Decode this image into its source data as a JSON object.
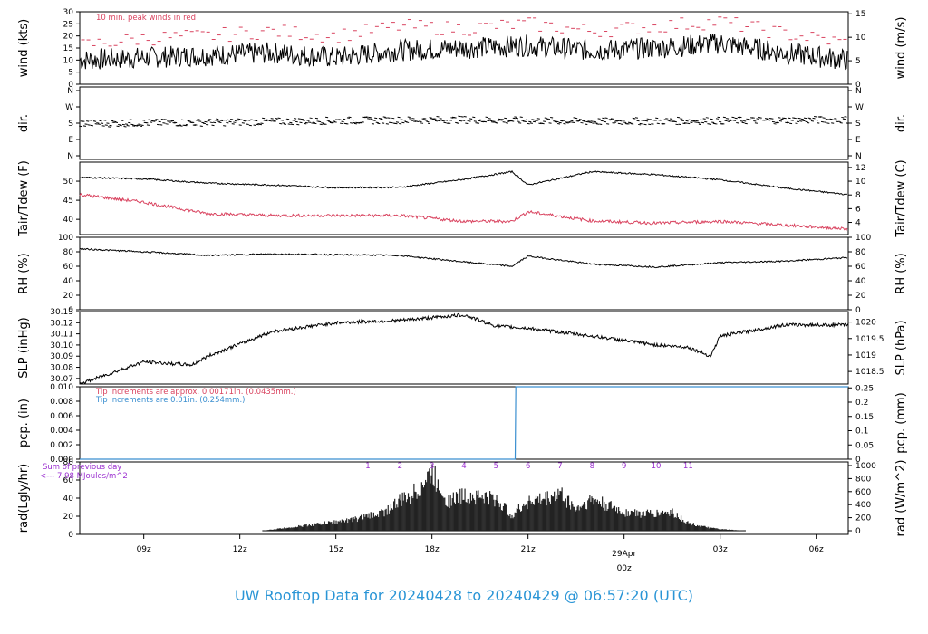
{
  "footer_title": "UW Rooftop Data for 20240428  to  20240429 @ 06:57:20  (UTC)",
  "colors": {
    "peak": "#d9435f",
    "tdew": "#d9435f",
    "pcp_tip2": "#3b8fd0",
    "note_purple": "#9b30d0",
    "date": "#d9435f",
    "footer": "#2a95d6"
  },
  "chart_data": [
    {
      "type": "line",
      "panel": "wind",
      "ylabel_left": "wind (kts)",
      "ylabel_right": "wind (m/s)",
      "ylim_left": [
        0,
        30
      ],
      "ticks_left": [
        0,
        5,
        10,
        15,
        20,
        25,
        30
      ],
      "ticks_right": [
        0,
        5,
        10,
        15
      ],
      "annotation": "10 min. peak winds in red",
      "x_hours": [
        0,
        2,
        4,
        6,
        8,
        10,
        12,
        14,
        16,
        18,
        20,
        22,
        24
      ],
      "series": [
        {
          "values": [
            10,
            11,
            12,
            13,
            11,
            14,
            15,
            16,
            14,
            15,
            17,
            13,
            10
          ]
        },
        {
          "values": [
            16,
            19,
            20,
            22,
            20,
            24,
            23,
            25,
            22,
            24,
            26,
            21,
            17
          ],
          "style": "peak-dashes"
        }
      ]
    },
    {
      "type": "scatter",
      "panel": "dir",
      "ylabel_left": "dir.",
      "ylabel_right": "dir.",
      "ticks": [
        "N",
        "W",
        "S",
        "E",
        "N"
      ],
      "x_hours": [
        0,
        4,
        8,
        12,
        16,
        20,
        24
      ],
      "values_deg": [
        180,
        185,
        195,
        200,
        190,
        195,
        200
      ]
    },
    {
      "type": "line",
      "panel": "temp",
      "ylabel_left": "Tair/Tdew (F)",
      "ylabel_right": "Tair/Tdew (C)",
      "ylim_left": [
        36,
        55
      ],
      "ticks_left": [
        40,
        45,
        50
      ],
      "ticks_right": [
        4,
        6,
        8,
        10,
        12
      ],
      "x_hours": [
        0,
        2,
        4,
        6,
        8,
        10,
        12,
        13.5,
        14,
        16,
        18,
        20,
        22,
        24
      ],
      "series": [
        {
          "name": "Tair",
          "values": [
            51,
            50.6,
            49.5,
            49,
            48.3,
            48.4,
            50.5,
            52.5,
            49,
            52.5,
            51.7,
            50.4,
            48.2,
            46.5
          ]
        },
        {
          "name": "Tdew",
          "values": [
            46.5,
            44.5,
            41.5,
            41,
            41,
            41,
            39.5,
            39.5,
            42,
            39.6,
            39,
            39.5,
            38.5,
            37.5
          ]
        }
      ]
    },
    {
      "type": "line",
      "panel": "rh",
      "ylabel_left": "RH (%)",
      "ylabel_right": "RH (%)",
      "ylim": [
        0,
        100
      ],
      "ticks": [
        0,
        20,
        40,
        60,
        80,
        100
      ],
      "x_hours": [
        0,
        2,
        4,
        6,
        8,
        10,
        12,
        13.5,
        14,
        16,
        18,
        20,
        22,
        24
      ],
      "values": [
        84,
        80,
        75,
        77,
        76,
        75,
        66,
        60,
        74,
        63,
        59,
        65,
        67,
        72
      ]
    },
    {
      "type": "line",
      "panel": "slp",
      "ylabel_left": "SLP (inHg)",
      "ylabel_right": "SLP (hPa)",
      "ylim_left": [
        30.065,
        30.13
      ],
      "ticks_left": [
        30.07,
        30.08,
        30.09,
        30.1,
        30.11,
        30.12,
        30.13
      ],
      "ticks_right": [
        1018.5,
        1019,
        1019.5,
        1020
      ],
      "x_hours": [
        0,
        2,
        3.5,
        4,
        6,
        8,
        10,
        12,
        13,
        14,
        16,
        18,
        19,
        19.7,
        20,
        22,
        24
      ],
      "values": [
        30.065,
        30.085,
        30.082,
        30.09,
        30.112,
        30.12,
        30.122,
        30.127,
        30.117,
        30.115,
        30.108,
        30.1,
        30.098,
        30.09,
        30.108,
        30.118,
        30.118
      ]
    },
    {
      "type": "line",
      "panel": "pcp",
      "ylabel_left": "pcp. (in)",
      "ylabel_right": "pcp. (mm)",
      "ylim_left": [
        0,
        0.01
      ],
      "ticks_left": [
        0.0,
        0.002,
        0.004,
        0.006,
        0.008,
        0.01
      ],
      "ticks_right": [
        0,
        0.05,
        0.1,
        0.15,
        0.2,
        0.25
      ],
      "annotations": [
        "Tip increments are approx. 0.00171in. (0.0435mm.)",
        "Tip increments are 0.01in. (0.254mm.)"
      ],
      "x_hours": [
        0,
        13.6,
        13.62,
        24
      ],
      "values": [
        0,
        0,
        0.01,
        0.01
      ]
    },
    {
      "type": "area",
      "panel": "rad",
      "ylabel_left": "rad(Lgly/hr)",
      "ylabel_right": "rad (W/m^2)",
      "ylim_left": [
        0,
        80
      ],
      "ticks_left": [
        0,
        20,
        40,
        60,
        80
      ],
      "ticks_right": [
        0,
        200,
        400,
        600,
        800,
        1000
      ],
      "annotations": [
        "Sum of previous day",
        "<--- 7.98 MJoules/m^2"
      ],
      "hour_labels": [
        "1",
        "2",
        "3",
        "4",
        "5",
        "6",
        "7",
        "8",
        "9",
        "10",
        "11"
      ],
      "x_hours": [
        5.7,
        6.5,
        7.5,
        8.5,
        9.5,
        10.0,
        10.5,
        11.0,
        11.5,
        12.0,
        12.5,
        13.0,
        13.5,
        14.0,
        14.5,
        15.0,
        15.5,
        16.0,
        16.5,
        17.0,
        17.5,
        18.0,
        18.5,
        19.0,
        19.5,
        20.0,
        20.8
      ],
      "values": [
        0,
        4,
        9,
        14,
        24,
        38,
        50,
        74,
        38,
        45,
        44,
        40,
        20,
        38,
        40,
        48,
        28,
        40,
        32,
        24,
        22,
        22,
        24,
        10,
        5,
        2,
        0
      ]
    }
  ],
  "x_axis": {
    "labels": [
      "09z",
      "12z",
      "15z",
      "18z",
      "21z",
      "00z",
      "03z",
      "06z"
    ],
    "date_label": "29Apr",
    "date_time": "00z"
  }
}
